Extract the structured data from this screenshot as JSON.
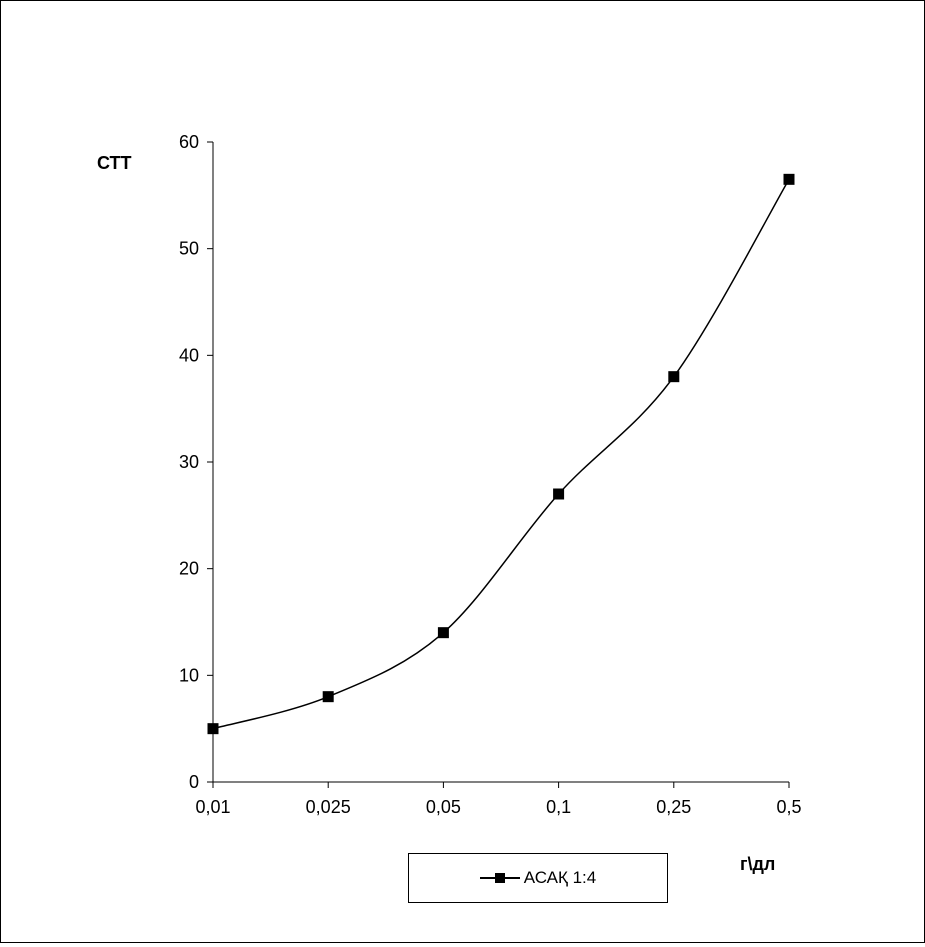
{
  "chart_data": {
    "type": "line",
    "x_type": "category",
    "categories": [
      "0,01",
      "0,025",
      "0,05",
      "0,1",
      "0,25",
      "0,5"
    ],
    "series": [
      {
        "name": "АСАҚ 1:4",
        "values": [
          5,
          8,
          14,
          27,
          38,
          56.5
        ],
        "marker": "square",
        "color": "#000000",
        "smooth": true
      }
    ],
    "ylabel": "СТТ",
    "xlabel": "г\\дл",
    "ylim": [
      0,
      60
    ],
    "yticks": [
      "0",
      "10",
      "20",
      "30",
      "40",
      "50",
      "60"
    ],
    "grid": false,
    "legend_position": "bottom"
  }
}
